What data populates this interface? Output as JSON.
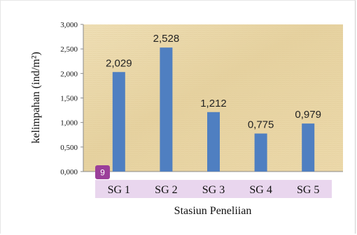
{
  "chart_data": {
    "type": "bar",
    "categories": [
      "SG 1",
      "SG 2",
      "SG 3",
      "SG 4",
      "SG 5"
    ],
    "values": [
      2.029,
      2.528,
      1.212,
      0.775,
      0.979
    ],
    "data_labels": [
      "2,029",
      "2,528",
      "1,212",
      "0,775",
      "0,979"
    ],
    "yticks": [
      0,
      0.5,
      1.0,
      1.5,
      2.0,
      2.5,
      3.0
    ],
    "ytick_labels": [
      "0,000",
      "0,500",
      "1,000",
      "1,500",
      "2,000",
      "2,500",
      "3,000"
    ],
    "ylim": [
      0,
      3.0
    ],
    "xlabel": "Stasiun Peneliian",
    "ylabel": "kelimpahan (ind/m²)",
    "grid": false,
    "colors": {
      "bar": "#4f7fc1",
      "plot_background": "#ead9ad",
      "category_band": "#e9d6ee",
      "badge": "#9b3f9a"
    }
  },
  "badge": {
    "text": "9"
  }
}
